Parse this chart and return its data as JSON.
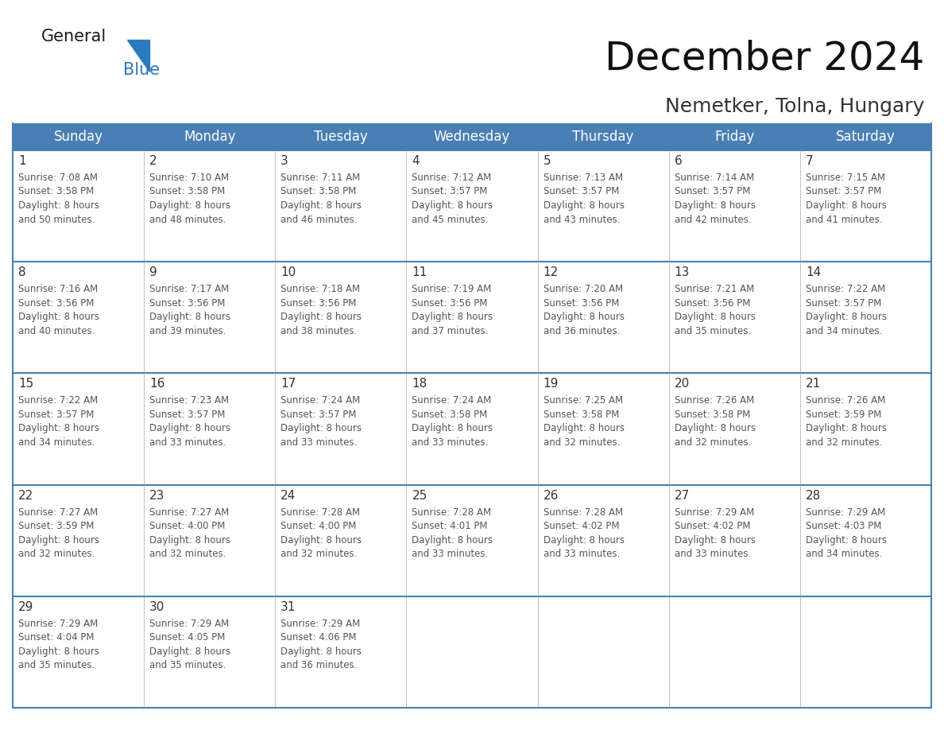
{
  "title": "December 2024",
  "subtitle": "Nemetker, Tolna, Hungary",
  "header_color": "#4a7fb5",
  "header_text_color": "#ffffff",
  "cell_bg_color": "#ffffff",
  "day_number_color": "#333333",
  "day_text_color": "#555555",
  "grid_line_color": "#4a7fb5",
  "days_of_week": [
    "Sunday",
    "Monday",
    "Tuesday",
    "Wednesday",
    "Thursday",
    "Friday",
    "Saturday"
  ],
  "weeks": [
    [
      {
        "day": 1,
        "sunrise": "7:08 AM",
        "sunset": "3:58 PM",
        "daylight_hours": 8,
        "daylight_min": 50
      },
      {
        "day": 2,
        "sunrise": "7:10 AM",
        "sunset": "3:58 PM",
        "daylight_hours": 8,
        "daylight_min": 48
      },
      {
        "day": 3,
        "sunrise": "7:11 AM",
        "sunset": "3:58 PM",
        "daylight_hours": 8,
        "daylight_min": 46
      },
      {
        "day": 4,
        "sunrise": "7:12 AM",
        "sunset": "3:57 PM",
        "daylight_hours": 8,
        "daylight_min": 45
      },
      {
        "day": 5,
        "sunrise": "7:13 AM",
        "sunset": "3:57 PM",
        "daylight_hours": 8,
        "daylight_min": 43
      },
      {
        "day": 6,
        "sunrise": "7:14 AM",
        "sunset": "3:57 PM",
        "daylight_hours": 8,
        "daylight_min": 42
      },
      {
        "day": 7,
        "sunrise": "7:15 AM",
        "sunset": "3:57 PM",
        "daylight_hours": 8,
        "daylight_min": 41
      }
    ],
    [
      {
        "day": 8,
        "sunrise": "7:16 AM",
        "sunset": "3:56 PM",
        "daylight_hours": 8,
        "daylight_min": 40
      },
      {
        "day": 9,
        "sunrise": "7:17 AM",
        "sunset": "3:56 PM",
        "daylight_hours": 8,
        "daylight_min": 39
      },
      {
        "day": 10,
        "sunrise": "7:18 AM",
        "sunset": "3:56 PM",
        "daylight_hours": 8,
        "daylight_min": 38
      },
      {
        "day": 11,
        "sunrise": "7:19 AM",
        "sunset": "3:56 PM",
        "daylight_hours": 8,
        "daylight_min": 37
      },
      {
        "day": 12,
        "sunrise": "7:20 AM",
        "sunset": "3:56 PM",
        "daylight_hours": 8,
        "daylight_min": 36
      },
      {
        "day": 13,
        "sunrise": "7:21 AM",
        "sunset": "3:56 PM",
        "daylight_hours": 8,
        "daylight_min": 35
      },
      {
        "day": 14,
        "sunrise": "7:22 AM",
        "sunset": "3:57 PM",
        "daylight_hours": 8,
        "daylight_min": 34
      }
    ],
    [
      {
        "day": 15,
        "sunrise": "7:22 AM",
        "sunset": "3:57 PM",
        "daylight_hours": 8,
        "daylight_min": 34
      },
      {
        "day": 16,
        "sunrise": "7:23 AM",
        "sunset": "3:57 PM",
        "daylight_hours": 8,
        "daylight_min": 33
      },
      {
        "day": 17,
        "sunrise": "7:24 AM",
        "sunset": "3:57 PM",
        "daylight_hours": 8,
        "daylight_min": 33
      },
      {
        "day": 18,
        "sunrise": "7:24 AM",
        "sunset": "3:58 PM",
        "daylight_hours": 8,
        "daylight_min": 33
      },
      {
        "day": 19,
        "sunrise": "7:25 AM",
        "sunset": "3:58 PM",
        "daylight_hours": 8,
        "daylight_min": 32
      },
      {
        "day": 20,
        "sunrise": "7:26 AM",
        "sunset": "3:58 PM",
        "daylight_hours": 8,
        "daylight_min": 32
      },
      {
        "day": 21,
        "sunrise": "7:26 AM",
        "sunset": "3:59 PM",
        "daylight_hours": 8,
        "daylight_min": 32
      }
    ],
    [
      {
        "day": 22,
        "sunrise": "7:27 AM",
        "sunset": "3:59 PM",
        "daylight_hours": 8,
        "daylight_min": 32
      },
      {
        "day": 23,
        "sunrise": "7:27 AM",
        "sunset": "4:00 PM",
        "daylight_hours": 8,
        "daylight_min": 32
      },
      {
        "day": 24,
        "sunrise": "7:28 AM",
        "sunset": "4:00 PM",
        "daylight_hours": 8,
        "daylight_min": 32
      },
      {
        "day": 25,
        "sunrise": "7:28 AM",
        "sunset": "4:01 PM",
        "daylight_hours": 8,
        "daylight_min": 33
      },
      {
        "day": 26,
        "sunrise": "7:28 AM",
        "sunset": "4:02 PM",
        "daylight_hours": 8,
        "daylight_min": 33
      },
      {
        "day": 27,
        "sunrise": "7:29 AM",
        "sunset": "4:02 PM",
        "daylight_hours": 8,
        "daylight_min": 33
      },
      {
        "day": 28,
        "sunrise": "7:29 AM",
        "sunset": "4:03 PM",
        "daylight_hours": 8,
        "daylight_min": 34
      }
    ],
    [
      {
        "day": 29,
        "sunrise": "7:29 AM",
        "sunset": "4:04 PM",
        "daylight_hours": 8,
        "daylight_min": 35
      },
      {
        "day": 30,
        "sunrise": "7:29 AM",
        "sunset": "4:05 PM",
        "daylight_hours": 8,
        "daylight_min": 35
      },
      {
        "day": 31,
        "sunrise": "7:29 AM",
        "sunset": "4:06 PM",
        "daylight_hours": 8,
        "daylight_min": 36
      },
      null,
      null,
      null,
      null
    ]
  ],
  "logo_color_general": "#1a1a1a",
  "logo_color_blue": "#2a7abf",
  "logo_triangle_color": "#2a7abf",
  "title_fontsize": 36,
  "subtitle_fontsize": 18,
  "header_fontsize": 12,
  "day_num_fontsize": 11,
  "cell_text_fontsize": 8.5,
  "fig_width": 11.88,
  "fig_height": 9.18,
  "dpi": 100
}
